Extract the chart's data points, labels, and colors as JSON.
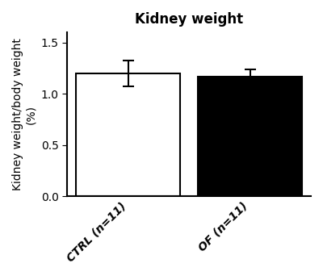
{
  "title": "Kidney weight",
  "ylabel": "Kidney weight/body weight\n(%)",
  "categories": [
    "CTRL (n=11)",
    "OF (n=11)"
  ],
  "values": [
    1.2,
    1.17
  ],
  "errors": [
    0.125,
    0.065
  ],
  "bar_colors": [
    "#ffffff",
    "#000000"
  ],
  "bar_edgecolors": [
    "#000000",
    "#000000"
  ],
  "ylim": [
    0.0,
    1.6
  ],
  "yticks": [
    0.0,
    0.5,
    1.0,
    1.5
  ],
  "bar_width": 0.6,
  "capsize": 5,
  "title_fontsize": 12,
  "label_fontsize": 10,
  "tick_fontsize": 10,
  "xtick_fontsize": 10,
  "background_color": "#ffffff",
  "error_color": "#000000",
  "linewidth": 1.5,
  "x_positions": [
    0.3,
    1.0
  ]
}
